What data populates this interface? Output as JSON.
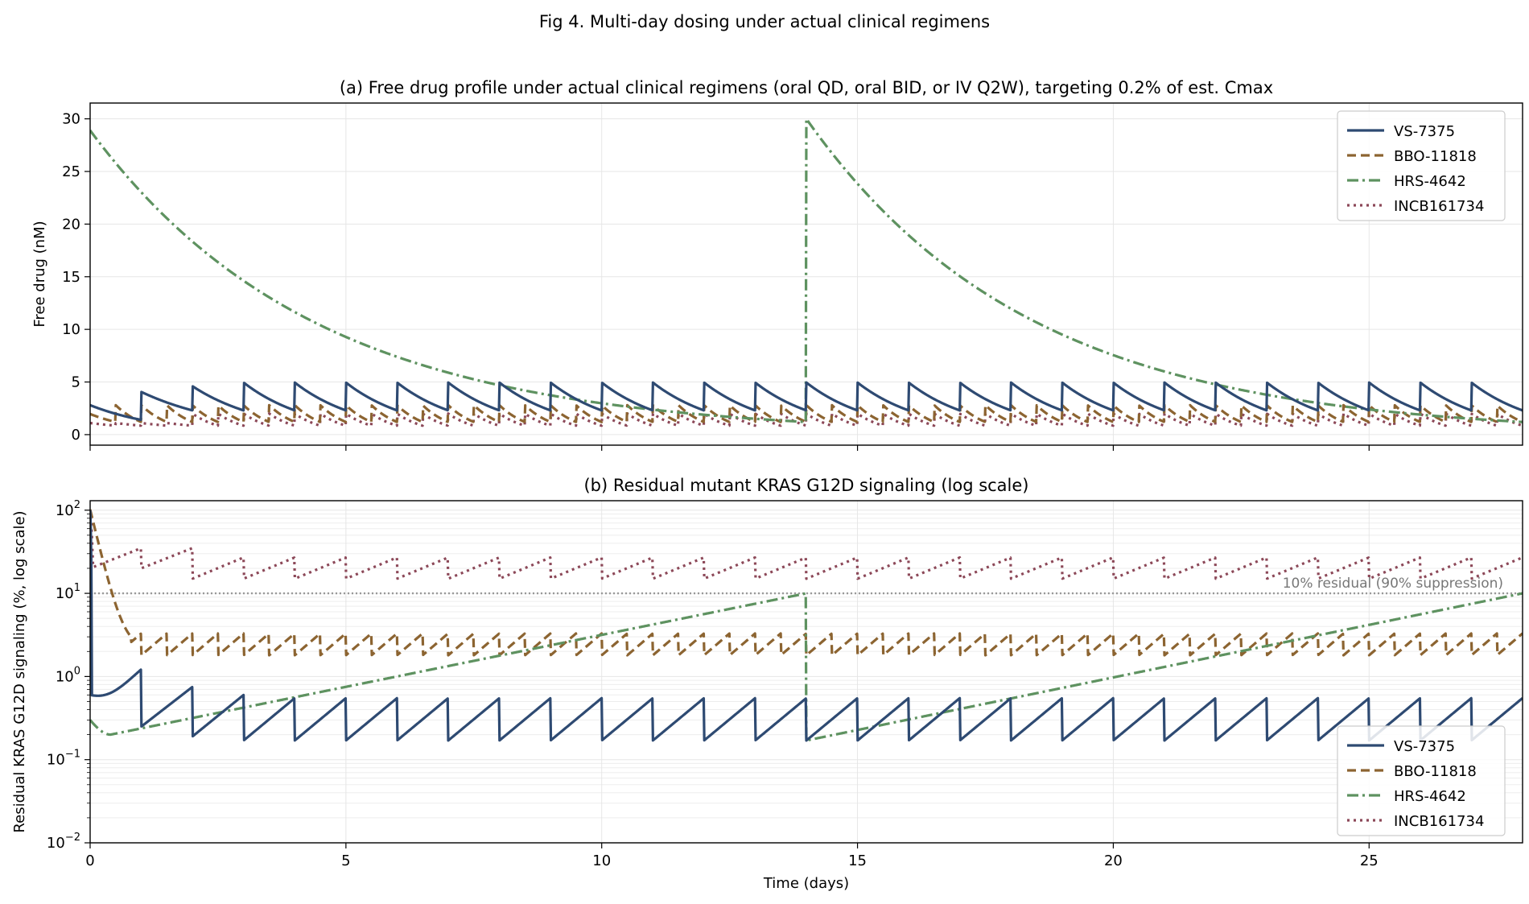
{
  "suptitle": "Fig 4. Multi-day dosing under actual clinical regimens",
  "colors": {
    "VS-7375": "#2e4a72",
    "BBO-11818": "#8c6431",
    "HRS-4642": "#5e9260",
    "INCB161734": "#8c4858",
    "reference": "#999999"
  },
  "chart_data": [
    {
      "type": "line",
      "title": "(a) Free drug profile under actual clinical regimens (oral QD, oral BID, or IV Q2W), targeting 0.2% of est. Cmax",
      "xlabel": "",
      "ylabel": "Free drug (nM)",
      "xlim": [
        0,
        28
      ],
      "ylim": [
        -1,
        31.5
      ],
      "yticks": [
        "0",
        "5",
        "10",
        "15",
        "20",
        "25",
        "30"
      ],
      "xticks": [
        "0",
        "5",
        "10",
        "15",
        "20",
        "25"
      ],
      "yscale": "linear",
      "legend_position": "top-right",
      "series": [
        {
          "name": "VS-7375",
          "style": "solid",
          "regimen": "oral QD",
          "trough": 2.3,
          "peak": 4.95,
          "first_day_start": 2.8
        },
        {
          "name": "BBO-11818",
          "style": "dashed",
          "regimen": "oral BID",
          "trough": 1.2,
          "peak": 2.8
        },
        {
          "name": "HRS-4642",
          "style": "dashdot",
          "regimen": "IV Q2W",
          "start": 28.9,
          "peak": 30.0,
          "trough": 1.2
        },
        {
          "name": "INCB161734",
          "style": "dotted",
          "regimen": "oral BID",
          "trough": 0.85,
          "peak": 2.0
        }
      ]
    },
    {
      "type": "line",
      "title": "(b) Residual mutant KRAS G12D signaling (log scale)",
      "xlabel": "Time (days)",
      "ylabel": "Residual KRAS G12D signaling (%, log scale)",
      "xlim": [
        0,
        28
      ],
      "ylim": [
        0.01,
        130
      ],
      "yscale": "log",
      "xticks": [
        "0",
        "5",
        "10",
        "15",
        "20",
        "25"
      ],
      "yticks": [
        {
          "base": "10",
          "exp": "−2"
        },
        {
          "base": "10",
          "exp": "−1"
        },
        {
          "base": "10",
          "exp": "0"
        },
        {
          "base": "10",
          "exp": "1"
        },
        {
          "base": "10",
          "exp": "2"
        }
      ],
      "reference_line": {
        "y": 10,
        "label": "10% residual (90% suppression)"
      },
      "legend_position": "lower-right",
      "series": [
        {
          "name": "VS-7375",
          "style": "solid",
          "low": 0.17,
          "high": 0.55
        },
        {
          "name": "BBO-11818",
          "style": "dashed",
          "low": 1.8,
          "high": 3.3
        },
        {
          "name": "HRS-4642",
          "style": "dashdot",
          "low": 0.17,
          "high": 10
        },
        {
          "name": "INCB161734",
          "style": "dotted",
          "low": 15,
          "high": 27
        }
      ]
    }
  ]
}
